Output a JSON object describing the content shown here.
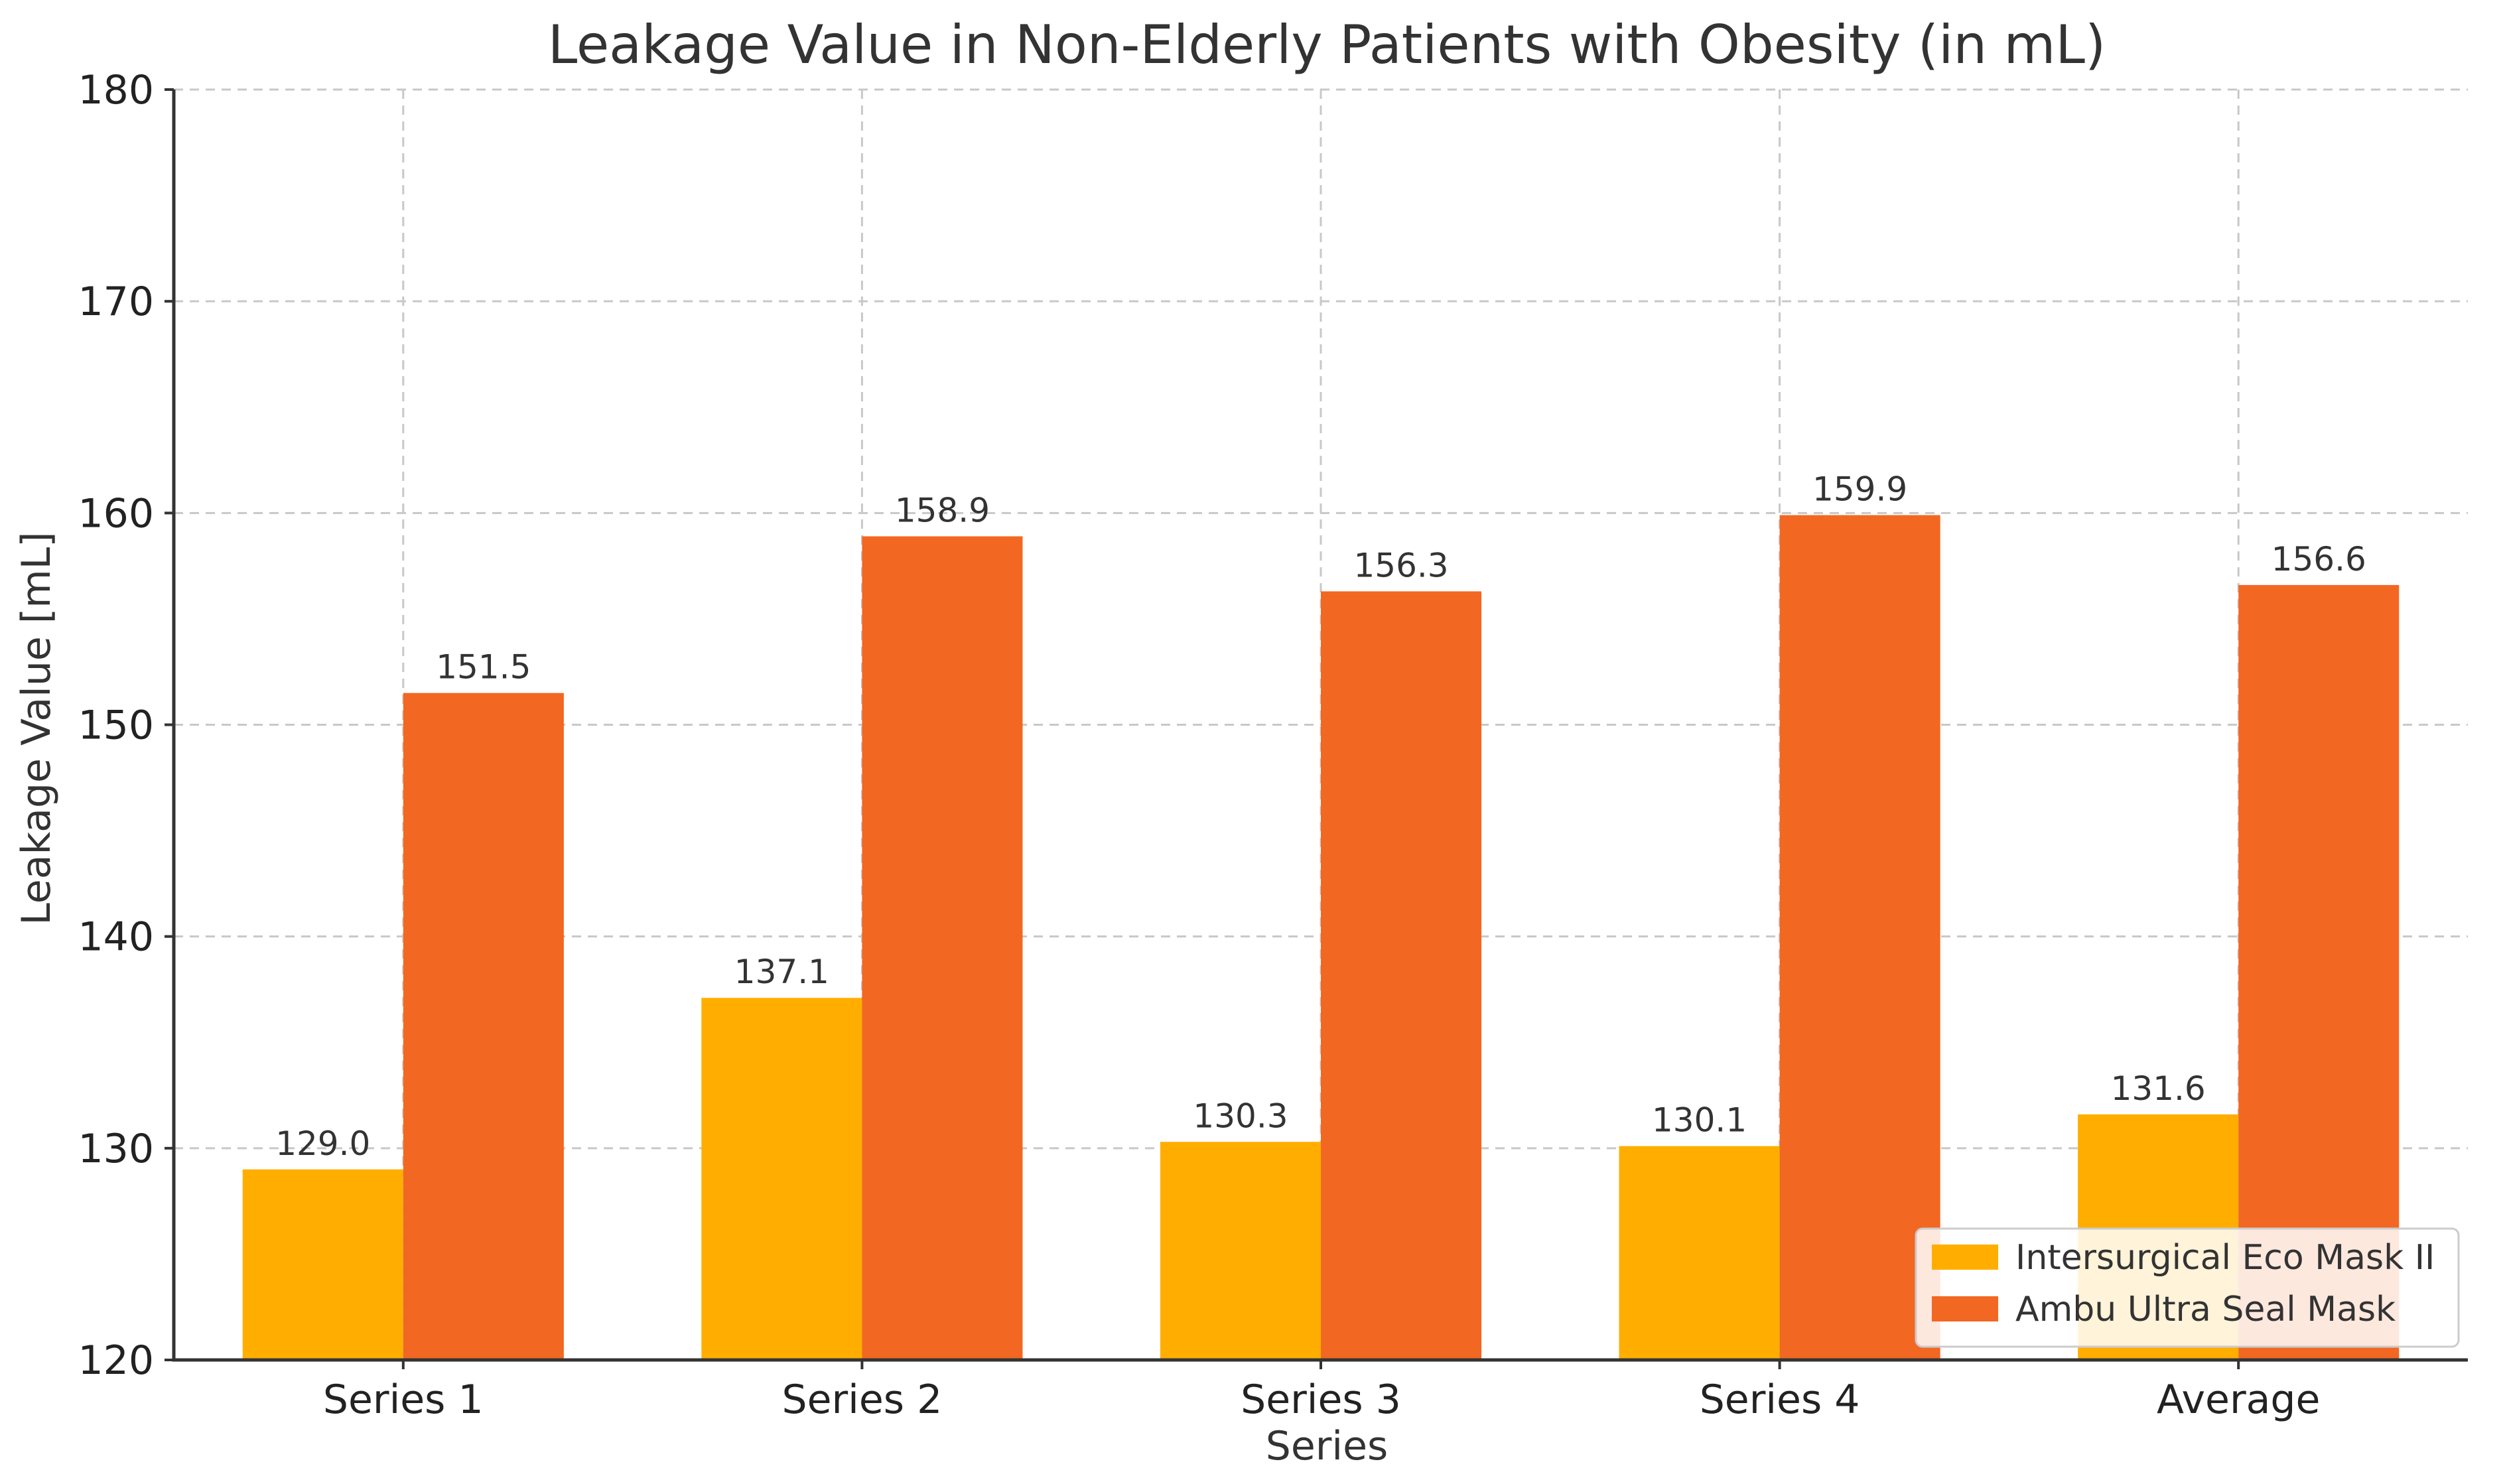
{
  "chart_data": {
    "type": "bar",
    "title": "Leakage Value in Non-Elderly Patients with Obesity (in mL)",
    "xlabel": "Series",
    "ylabel": "Leakage Value [mL]",
    "ylim": [
      120,
      180
    ],
    "yticks": [
      120,
      130,
      140,
      150,
      160,
      170,
      180
    ],
    "grid": true,
    "legend_position": "bottom-right",
    "categories": [
      "Series 1",
      "Series 2",
      "Series 3",
      "Series 4",
      "Average"
    ],
    "series": [
      {
        "name": "Intersurgical Eco Mask II",
        "color": "#FFAE00",
        "values": [
          129.0,
          137.1,
          130.3,
          130.1,
          131.6
        ],
        "labels": [
          "129.0",
          "137.1",
          "130.3",
          "130.1",
          "131.6"
        ]
      },
      {
        "name": "Ambu Ultra Seal Mask",
        "color": "#F26722",
        "values": [
          151.5,
          158.9,
          156.3,
          159.9,
          156.6
        ],
        "labels": [
          "151.5",
          "158.9",
          "156.3",
          "159.9",
          "156.6"
        ]
      }
    ]
  }
}
